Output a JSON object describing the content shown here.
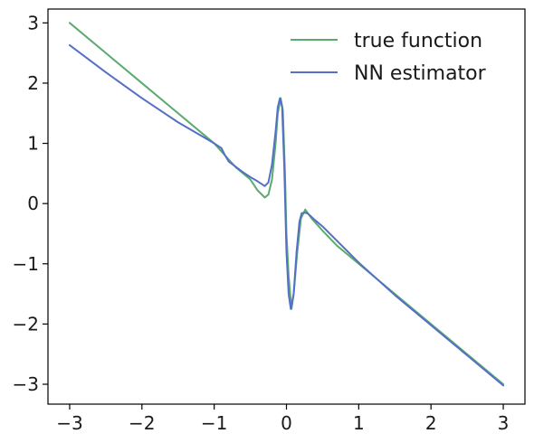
{
  "chart_data": {
    "type": "line",
    "title": "",
    "xlabel": "",
    "ylabel": "",
    "xlim": [
      -3.3,
      3.3
    ],
    "ylim": [
      -3.33,
      3.23
    ],
    "xticks": [
      -3,
      -2,
      -1,
      0,
      1,
      2,
      3
    ],
    "xtick_labels": [
      "−3",
      "−2",
      "−1",
      "0",
      "1",
      "2",
      "3"
    ],
    "yticks": [
      -3,
      -2,
      -1,
      0,
      1,
      2,
      3
    ],
    "ytick_labels": [
      "−3",
      "−2",
      "−1",
      "0",
      "1",
      "2",
      "3"
    ],
    "grid": false,
    "legend_position": "top-right",
    "series": [
      {
        "name": "true function",
        "color": "#5aab6e",
        "points": [
          [
            -3.0,
            3.0
          ],
          [
            -2.5,
            2.5
          ],
          [
            -2.0,
            2.0
          ],
          [
            -1.5,
            1.5
          ],
          [
            -1.0,
            1.0
          ],
          [
            -0.7,
            0.6
          ],
          [
            -0.5,
            0.4
          ],
          [
            -0.4,
            0.22
          ],
          [
            -0.3,
            0.1
          ],
          [
            -0.25,
            0.15
          ],
          [
            -0.2,
            0.4
          ],
          [
            -0.15,
            1.0
          ],
          [
            -0.12,
            1.5
          ],
          [
            -0.08,
            1.75
          ],
          [
            -0.05,
            1.55
          ],
          [
            -0.02,
            0.5
          ],
          [
            0.0,
            -0.5
          ],
          [
            0.03,
            -1.2
          ],
          [
            0.07,
            -1.75
          ],
          [
            0.1,
            -1.5
          ],
          [
            0.15,
            -0.8
          ],
          [
            0.2,
            -0.25
          ],
          [
            0.26,
            -0.1
          ],
          [
            0.35,
            -0.25
          ],
          [
            0.5,
            -0.45
          ],
          [
            0.7,
            -0.7
          ],
          [
            1.0,
            -1.0
          ],
          [
            1.5,
            -1.5
          ],
          [
            2.0,
            -2.0
          ],
          [
            2.5,
            -2.5
          ],
          [
            3.0,
            -3.0
          ]
        ]
      },
      {
        "name": "NN estimator",
        "color": "#5470c6",
        "points": [
          [
            -3.0,
            2.63
          ],
          [
            -2.5,
            2.18
          ],
          [
            -2.0,
            1.75
          ],
          [
            -1.5,
            1.35
          ],
          [
            -1.0,
            1.0
          ],
          [
            -0.9,
            0.92
          ],
          [
            -0.85,
            0.8
          ],
          [
            -0.8,
            0.7
          ],
          [
            -0.6,
            0.52
          ],
          [
            -0.5,
            0.44
          ],
          [
            -0.4,
            0.37
          ],
          [
            -0.3,
            0.29
          ],
          [
            -0.25,
            0.35
          ],
          [
            -0.2,
            0.65
          ],
          [
            -0.15,
            1.2
          ],
          [
            -0.12,
            1.6
          ],
          [
            -0.09,
            1.75
          ],
          [
            -0.06,
            1.6
          ],
          [
            -0.03,
            0.6
          ],
          [
            0.0,
            -0.8
          ],
          [
            0.03,
            -1.5
          ],
          [
            0.06,
            -1.75
          ],
          [
            0.1,
            -1.5
          ],
          [
            0.14,
            -0.8
          ],
          [
            0.18,
            -0.3
          ],
          [
            0.21,
            -0.16
          ],
          [
            0.26,
            -0.15
          ],
          [
            0.3,
            -0.17
          ],
          [
            0.4,
            -0.28
          ],
          [
            0.5,
            -0.38
          ],
          [
            0.7,
            -0.62
          ],
          [
            1.0,
            -0.98
          ],
          [
            1.5,
            -1.52
          ],
          [
            2.0,
            -2.02
          ],
          [
            2.5,
            -2.52
          ],
          [
            3.0,
            -3.02
          ]
        ]
      }
    ]
  }
}
